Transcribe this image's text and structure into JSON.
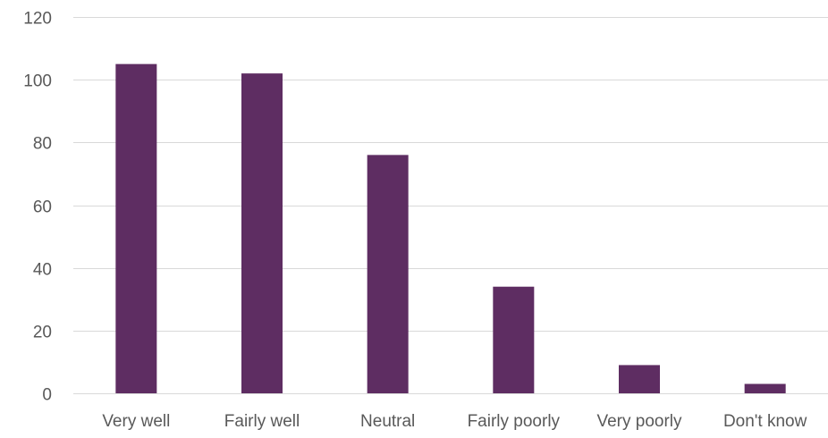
{
  "chart_data": {
    "type": "bar",
    "title": "",
    "xlabel": "",
    "ylabel": "",
    "categories": [
      "Very well",
      "Fairly well",
      "Neutral",
      "Fairly poorly",
      "Very poorly",
      "Don't know"
    ],
    "values": [
      105,
      102,
      76,
      34,
      9,
      3
    ],
    "ylim": [
      0,
      120
    ],
    "yticks": [
      0,
      20,
      40,
      60,
      80,
      100,
      120
    ],
    "ytick_labels": [
      "0",
      "20",
      "40",
      "60",
      "80",
      "100",
      "120"
    ],
    "grid": true,
    "legend": "none",
    "colors": {
      "bar": "#5e2d62",
      "grid": "#d9d9d9",
      "text": "#595959"
    }
  }
}
